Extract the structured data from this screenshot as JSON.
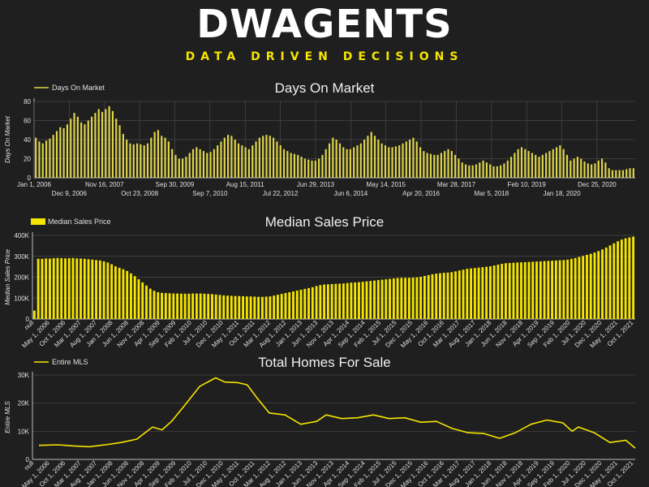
{
  "logo": {
    "main": "DWAGENTS",
    "tagline": "DATA DRIVEN DECISIONS"
  },
  "colors": {
    "background": "#1f1f1f",
    "accent": "#f5e500",
    "logo_text": "#ffffff"
  },
  "chart_data": [
    {
      "type": "bar",
      "title": "Days On Market",
      "legend": [
        "Days On Market"
      ],
      "legend_placement": "top-left",
      "ylabel": "Days On Market",
      "ylim": [
        0,
        80
      ],
      "yticks": [
        0,
        20,
        40,
        60,
        80
      ],
      "grid": true,
      "x_start": "2006-01-01",
      "x_end": "2021-12-31",
      "xtick_labels": [
        {
          "date": "2006-01-01",
          "label": "Jan 1, 2006",
          "row": 1
        },
        {
          "date": "2006-12-09",
          "label": "Dec 9, 2006",
          "row": 2
        },
        {
          "date": "2007-11-16",
          "label": "Nov 16, 2007",
          "row": 1
        },
        {
          "date": "2008-10-23",
          "label": "Oct 23, 2008",
          "row": 2
        },
        {
          "date": "2009-09-30",
          "label": "Sep 30, 2009",
          "row": 1
        },
        {
          "date": "2010-09-07",
          "label": "Sep 7, 2010",
          "row": 2
        },
        {
          "date": "2011-08-15",
          "label": "Aug 15, 2011",
          "row": 1
        },
        {
          "date": "2012-07-22",
          "label": "Jul 22, 2012",
          "row": 2
        },
        {
          "date": "2013-06-29",
          "label": "Jun 29, 2013",
          "row": 1
        },
        {
          "date": "2014-06-06",
          "label": "Jun 6, 2014",
          "row": 2
        },
        {
          "date": "2015-05-14",
          "label": "May 14, 2015",
          "row": 1
        },
        {
          "date": "2016-04-20",
          "label": "Apr 20, 2016",
          "row": 2
        },
        {
          "date": "2017-03-28",
          "label": "Mar 28, 2017",
          "row": 1
        },
        {
          "date": "2018-03-05",
          "label": "Mar 5, 2018",
          "row": 2
        },
        {
          "date": "2019-02-10",
          "label": "Feb 10, 2019",
          "row": 1
        },
        {
          "date": "2020-01-18",
          "label": "Jan 18, 2020",
          "row": 2
        },
        {
          "date": "2020-12-25",
          "label": "Dec 25, 2020",
          "row": 1
        }
      ],
      "series": [
        {
          "name": "Days On Market",
          "color": "#e0d64a",
          "values": [
            42,
            38,
            36,
            39,
            41,
            45,
            49,
            53,
            52,
            56,
            62,
            68,
            64,
            58,
            56,
            60,
            64,
            68,
            72,
            69,
            72,
            75,
            70,
            62,
            55,
            46,
            40,
            36,
            35,
            36,
            35,
            34,
            36,
            42,
            48,
            50,
            44,
            42,
            38,
            30,
            24,
            20,
            20,
            22,
            26,
            30,
            32,
            30,
            28,
            26,
            27,
            30,
            34,
            38,
            42,
            45,
            44,
            40,
            36,
            34,
            32,
            30,
            34,
            38,
            42,
            44,
            45,
            44,
            42,
            38,
            34,
            30,
            28,
            26,
            25,
            24,
            22,
            20,
            19,
            18,
            18,
            20,
            24,
            30,
            36,
            42,
            40,
            36,
            32,
            30,
            30,
            32,
            34,
            36,
            40,
            44,
            48,
            44,
            40,
            36,
            34,
            32,
            32,
            33,
            34,
            36,
            38,
            40,
            42,
            38,
            32,
            28,
            26,
            25,
            24,
            24,
            26,
            28,
            30,
            28,
            24,
            20,
            16,
            14,
            13,
            13,
            14,
            16,
            18,
            16,
            14,
            12,
            12,
            13,
            15,
            18,
            22,
            26,
            30,
            32,
            30,
            28,
            26,
            24,
            22,
            24,
            26,
            28,
            30,
            32,
            34,
            30,
            24,
            18,
            20,
            22,
            20,
            17,
            15,
            14,
            15,
            18,
            20,
            16,
            10,
            8,
            8,
            8,
            8,
            9,
            10,
            10
          ]
        }
      ]
    },
    {
      "type": "bar",
      "title": "Median Sales Price",
      "legend": [
        "Median Sales Price"
      ],
      "legend_placement": "top-left",
      "ylabel": "Median Sales Price",
      "ylim": [
        0,
        400000
      ],
      "yticks": [
        0,
        100000,
        200000,
        300000,
        400000
      ],
      "ytick_labels": [
        "0",
        "100K",
        "200K",
        "300K",
        "400K"
      ],
      "grid": true,
      "x_start": "2006-04-01",
      "x_end": "2021-12-31",
      "xtick_labels": [
        "null",
        "May 1, 2006",
        "Oct 1, 2006",
        "Mar 1, 2007",
        "Aug 1, 2007",
        "Jan 1, 2008",
        "Jun 1, 2008",
        "Nov 1, 2008",
        "Apr 1, 2009",
        "Sep 1, 2009",
        "Feb 1, 2010",
        "Jul 1, 2010",
        "Dec 1, 2010",
        "May 1, 2011",
        "Oct 1, 2011",
        "Mar 1, 2012",
        "Aug 1, 2012",
        "Jan 1, 2013",
        "Jun 1, 2013",
        "Nov 1, 2013",
        "Apr 1, 2014",
        "Sep 1, 2014",
        "Feb 1, 2015",
        "Jul 1, 2015",
        "Dec 1, 2015",
        "May 1, 2016",
        "Oct 1, 2016",
        "Mar 1, 2017",
        "Aug 1, 2017",
        "Jan 1, 2018",
        "Jun 1, 2018",
        "Nov 1, 2018",
        "Apr 1, 2019",
        "Sep 1, 2019",
        "Feb 1, 2020",
        "Jul 1, 2020",
        "Dec 1, 2020",
        "May 1, 2021",
        "Oct 1, 2021"
      ],
      "series": [
        {
          "name": "Median Sales Price",
          "color": "#f5e500",
          "values": [
            40000,
            288000,
            288000,
            290000,
            289000,
            291000,
            292000,
            291000,
            290000,
            291000,
            292000,
            290000,
            289000,
            288000,
            286000,
            284000,
            282000,
            280000,
            276000,
            270000,
            262000,
            252000,
            245000,
            238000,
            230000,
            218000,
            205000,
            190000,
            175000,
            160000,
            145000,
            135000,
            128000,
            125000,
            124000,
            123000,
            122000,
            122000,
            121000,
            121000,
            121000,
            122000,
            122000,
            122000,
            121000,
            120000,
            119000,
            117000,
            115000,
            113000,
            112000,
            111000,
            110000,
            110000,
            109000,
            108000,
            108000,
            107000,
            106000,
            106000,
            107000,
            108000,
            112000,
            116000,
            120000,
            124000,
            128000,
            132000,
            136000,
            140000,
            144000,
            148000,
            152000,
            158000,
            162000,
            165000,
            166000,
            167000,
            168000,
            169000,
            170000,
            172000,
            174000,
            175000,
            176000,
            178000,
            180000,
            182000,
            184000,
            186000,
            188000,
            190000,
            192000,
            194000,
            196000,
            197000,
            197000,
            197000,
            198000,
            199000,
            202000,
            206000,
            210000,
            214000,
            217000,
            219000,
            221000,
            222000,
            224000,
            228000,
            232000,
            236000,
            240000,
            242000,
            244000,
            246000,
            248000,
            250000,
            252000,
            256000,
            260000,
            264000,
            267000,
            268000,
            269000,
            270000,
            271000,
            272000,
            273000,
            274000,
            275000,
            276000,
            277000,
            278000,
            279000,
            280000,
            281000,
            282000,
            284000,
            288000,
            292000,
            297000,
            302000,
            307000,
            312000,
            318000,
            325000,
            333000,
            342000,
            352000,
            362000,
            372000,
            380000,
            386000,
            390000,
            394000
          ]
        }
      ]
    },
    {
      "type": "line",
      "title": "Total Homes For Sale",
      "legend": [
        "Entire MLS"
      ],
      "legend_placement": "top-left",
      "ylabel": "Entire MLS",
      "ylim": [
        0,
        30000
      ],
      "yticks": [
        0,
        10000,
        20000,
        30000
      ],
      "ytick_labels": [
        "0",
        "10K",
        "20K",
        "30K"
      ],
      "grid": true,
      "x_start": "2006-04-01",
      "x_end": "2021-12-31",
      "xtick_labels": [
        "null",
        "May 1, 2006",
        "Oct 1, 2006",
        "Mar 1, 2007",
        "Aug 1, 2007",
        "Jan 1, 2008",
        "Jun 1, 2008",
        "Nov 1, 2008",
        "Apr 1, 2009",
        "Sep 1, 2009",
        "Feb 1, 2010",
        "Jul 1, 2010",
        "Dec 1, 2010",
        "May 1, 2011",
        "Oct 1, 2011",
        "Mar 1, 2012",
        "Aug 1, 2012",
        "Jan 1, 2013",
        "Jun 1, 2013",
        "Nov 1, 2013",
        "Apr 1, 2014",
        "Sep 1, 2014",
        "Feb 1, 2015",
        "Jul 1, 2015",
        "Dec 1, 2015",
        "May 1, 2016",
        "Oct 1, 2016",
        "Mar 1, 2017",
        "Aug 1, 2017",
        "Jan 1, 2018",
        "Jun 1, 2018",
        "Nov 1, 2018",
        "Apr 1, 2019",
        "Sep 1, 2019",
        "Feb 1, 2020",
        "Jul 1, 2020",
        "Dec 1, 2020",
        "May 1, 2021",
        "Oct 1, 2021"
      ],
      "series": [
        {
          "name": "Entire MLS",
          "color": "#f5e500",
          "points": [
            [
              "2006-04-01",
              5000
            ],
            [
              "2006-10-01",
              5200
            ],
            [
              "2007-03-01",
              4800
            ],
            [
              "2007-08-01",
              4500
            ],
            [
              "2008-01-01",
              5200
            ],
            [
              "2008-06-01",
              6000
            ],
            [
              "2008-11-01",
              7200
            ],
            [
              "2009-04-01",
              11500
            ],
            [
              "2009-07-01",
              10500
            ],
            [
              "2009-10-01",
              13500
            ],
            [
              "2010-02-01",
              19000
            ],
            [
              "2010-07-01",
              26000
            ],
            [
              "2010-12-01",
              29000
            ],
            [
              "2011-03-01",
              27500
            ],
            [
              "2011-07-01",
              27300
            ],
            [
              "2011-10-01",
              26500
            ],
            [
              "2012-01-01",
              22000
            ],
            [
              "2012-05-01",
              16500
            ],
            [
              "2012-10-01",
              15800
            ],
            [
              "2013-03-01",
              12500
            ],
            [
              "2013-08-01",
              13500
            ],
            [
              "2013-11-01",
              15800
            ],
            [
              "2014-04-01",
              14500
            ],
            [
              "2014-09-01",
              14800
            ],
            [
              "2015-02-01",
              15800
            ],
            [
              "2015-07-01",
              14500
            ],
            [
              "2015-12-01",
              14800
            ],
            [
              "2016-05-01",
              13200
            ],
            [
              "2016-10-01",
              13500
            ],
            [
              "2017-03-01",
              11000
            ],
            [
              "2017-08-01",
              9500
            ],
            [
              "2018-01-01",
              9200
            ],
            [
              "2018-06-01",
              7500
            ],
            [
              "2018-11-01",
              9500
            ],
            [
              "2019-04-01",
              12500
            ],
            [
              "2019-09-01",
              14000
            ],
            [
              "2020-02-01",
              13000
            ],
            [
              "2020-05-01",
              10000
            ],
            [
              "2020-07-01",
              11500
            ],
            [
              "2020-12-01",
              9500
            ],
            [
              "2021-05-01",
              6000
            ],
            [
              "2021-08-01",
              6500
            ],
            [
              "2021-10-01",
              6800
            ],
            [
              "2021-12-31",
              4000
            ]
          ]
        }
      ]
    }
  ]
}
